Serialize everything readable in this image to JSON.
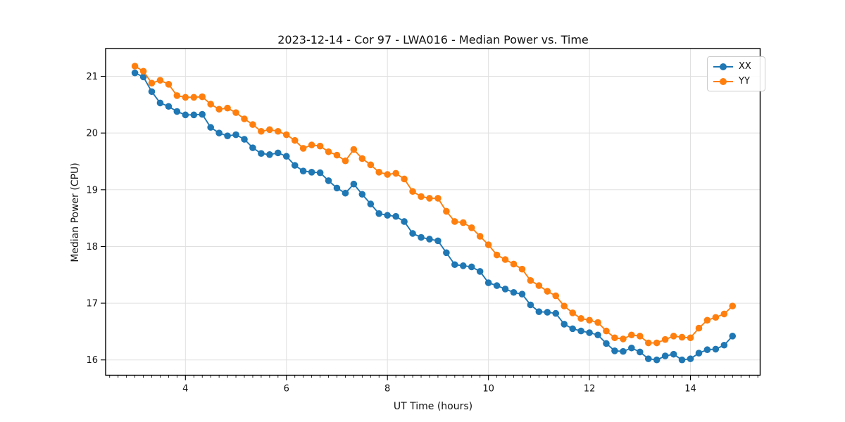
{
  "title": "2023-12-14 - Cor 97 - LWA016 - Median Power vs. Time",
  "axes": {
    "xlabel": "UT Time (hours)",
    "ylabel": "Median Power (CPU)"
  },
  "legend": {
    "items": [
      {
        "label": "XX",
        "color": "#1f77b4"
      },
      {
        "label": "YY",
        "color": "#ff7f0e"
      }
    ]
  },
  "chart_data": {
    "type": "line",
    "title": "2023-12-14 - Cor 97 - LWA016 - Median Power vs. Time",
    "xlabel": "UT Time (hours)",
    "ylabel": "Median Power (CPU)",
    "xlim": [
      2.42,
      15.38
    ],
    "ylim": [
      15.73,
      21.49
    ],
    "x_ticks": [
      4,
      6,
      8,
      10,
      12,
      14
    ],
    "y_ticks": [
      16,
      17,
      18,
      19,
      20,
      21
    ],
    "x_minor_step": 0.16667,
    "grid": true,
    "legend_position": "upper right",
    "marker": "circle",
    "x": [
      3.0,
      3.167,
      3.333,
      3.5,
      3.667,
      3.833,
      4.0,
      4.167,
      4.333,
      4.5,
      4.667,
      4.833,
      5.0,
      5.167,
      5.333,
      5.5,
      5.667,
      5.833,
      6.0,
      6.167,
      6.333,
      6.5,
      6.667,
      6.833,
      7.0,
      7.167,
      7.333,
      7.5,
      7.667,
      7.833,
      8.0,
      8.167,
      8.333,
      8.5,
      8.667,
      8.833,
      9.0,
      9.167,
      9.333,
      9.5,
      9.667,
      9.833,
      10.0,
      10.167,
      10.333,
      10.5,
      10.667,
      10.833,
      11.0,
      11.167,
      11.333,
      11.5,
      11.667,
      11.833,
      12.0,
      12.167,
      12.333,
      12.5,
      12.667,
      12.833,
      13.0,
      13.167,
      13.333,
      13.5,
      13.667,
      13.833,
      14.0,
      14.167,
      14.333,
      14.5,
      14.667,
      14.833
    ],
    "series": [
      {
        "name": "XX",
        "color": "#1f77b4",
        "values": [
          21.06,
          20.99,
          20.73,
          20.53,
          20.47,
          20.38,
          20.32,
          20.32,
          20.33,
          20.1,
          20.0,
          19.95,
          19.97,
          19.89,
          19.74,
          19.64,
          19.62,
          19.65,
          19.59,
          19.43,
          19.33,
          19.31,
          19.3,
          19.16,
          19.03,
          18.94,
          19.1,
          18.92,
          18.75,
          18.58,
          18.55,
          18.53,
          18.44,
          18.23,
          18.16,
          18.13,
          18.1,
          17.89,
          17.68,
          17.66,
          17.64,
          17.56,
          17.36,
          17.31,
          17.25,
          17.19,
          17.16,
          16.97,
          16.85,
          16.84,
          16.82,
          16.63,
          16.55,
          16.51,
          16.48,
          16.44,
          16.29,
          16.16,
          16.15,
          16.21,
          16.14,
          16.02,
          16.0,
          16.07,
          16.1,
          16.0,
          16.02,
          16.12,
          16.18,
          16.19,
          16.26,
          16.42
        ]
      },
      {
        "name": "YY",
        "color": "#ff7f0e",
        "values": [
          21.18,
          21.09,
          20.88,
          20.93,
          20.86,
          20.66,
          20.63,
          20.63,
          20.64,
          20.51,
          20.42,
          20.44,
          20.36,
          20.25,
          20.15,
          20.03,
          20.06,
          20.03,
          19.97,
          19.87,
          19.73,
          19.79,
          19.77,
          19.67,
          19.61,
          19.51,
          19.71,
          19.55,
          19.44,
          19.31,
          19.27,
          19.29,
          19.19,
          18.97,
          18.88,
          18.85,
          18.85,
          18.62,
          18.44,
          18.42,
          18.33,
          18.18,
          18.03,
          17.85,
          17.77,
          17.69,
          17.6,
          17.4,
          17.31,
          17.21,
          17.13,
          16.95,
          16.83,
          16.73,
          16.7,
          16.66,
          16.51,
          16.39,
          16.37,
          16.44,
          16.42,
          16.3,
          16.3,
          16.36,
          16.42,
          16.4,
          16.39,
          16.56,
          16.7,
          16.75,
          16.81,
          16.95
        ]
      }
    ]
  }
}
